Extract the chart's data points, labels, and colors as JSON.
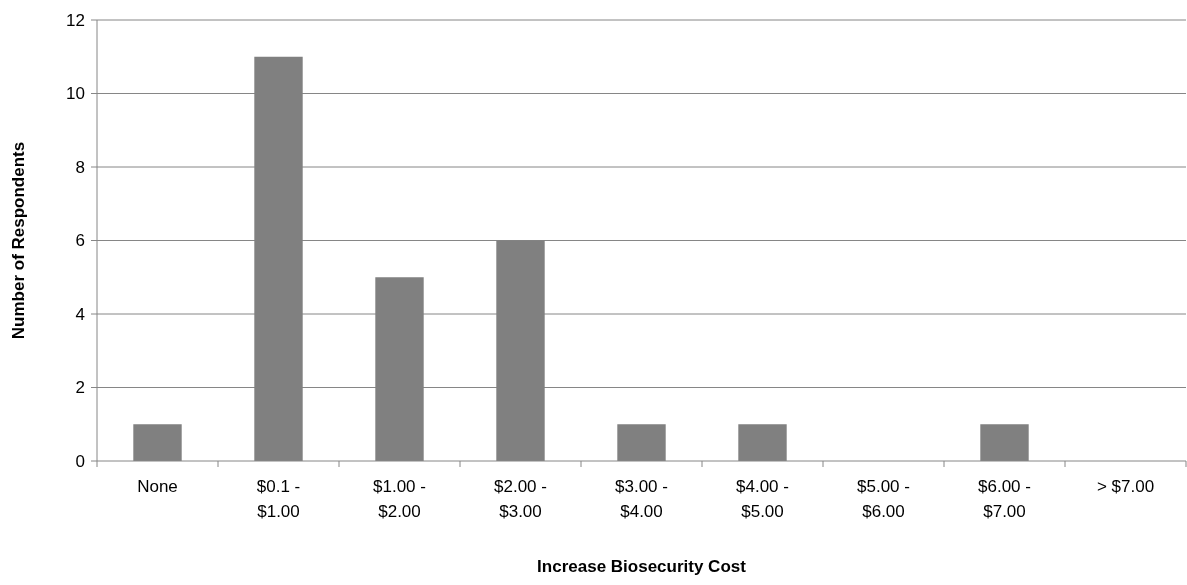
{
  "chart_data": {
    "type": "bar",
    "xlabel": "Increase Biosecurity Cost",
    "ylabel": "Number of Respondents",
    "categories": [
      "None",
      "$0.1 - $1.00",
      "$1.00 - $2.00",
      "$2.00 - $3.00",
      "$3.00 - $4.00",
      "$4.00 - $5.00",
      "$5.00 - $6.00",
      "$6.00 - $7.00",
      "> $7.00"
    ],
    "values": [
      1,
      11,
      5,
      6,
      1,
      1,
      0,
      1,
      0
    ],
    "color": "#808080",
    "ylim": [
      0,
      12
    ],
    "yticks": [
      0,
      2,
      4,
      6,
      8,
      10,
      12
    ],
    "grid": "y"
  }
}
